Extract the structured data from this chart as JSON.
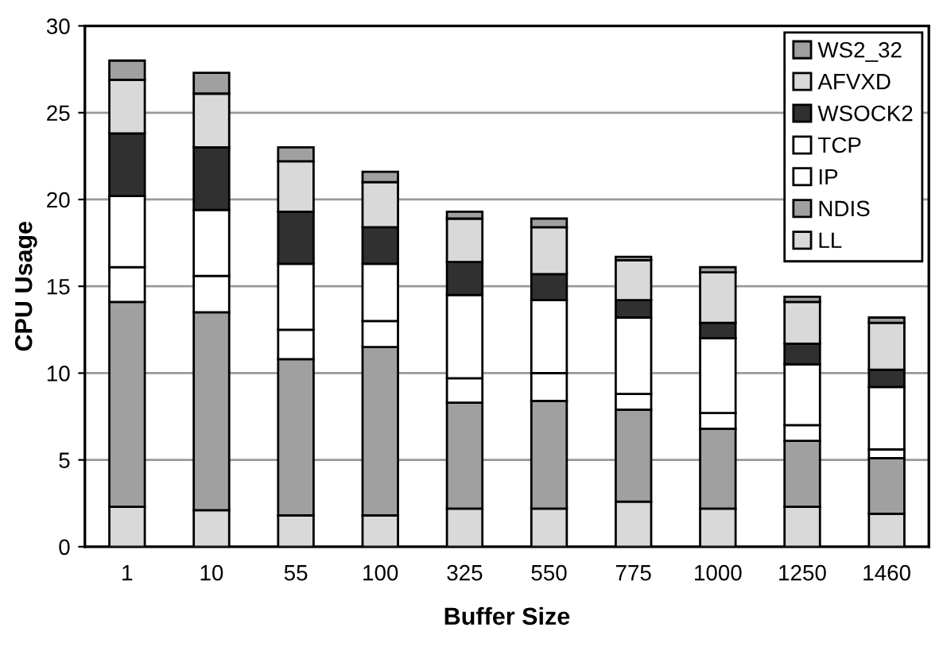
{
  "chart_data": {
    "type": "bar",
    "stacked": true,
    "xlabel": "Buffer Size",
    "ylabel": "CPU Usage",
    "categories": [
      "1",
      "10",
      "55",
      "100",
      "325",
      "550",
      "775",
      "1000",
      "1250",
      "1460"
    ],
    "series": [
      {
        "name": "LL",
        "color": "#d9d9d9",
        "values": [
          2.3,
          2.1,
          1.8,
          1.8,
          2.2,
          2.2,
          2.6,
          2.2,
          2.3,
          1.9
        ]
      },
      {
        "name": "NDIS",
        "color": "#a0a0a0",
        "values": [
          11.8,
          11.4,
          9.0,
          9.7,
          6.1,
          6.2,
          5.3,
          4.6,
          3.8,
          3.2
        ]
      },
      {
        "name": "IP",
        "color": "#ffffff",
        "values": [
          2.0,
          2.1,
          1.7,
          1.5,
          1.4,
          1.6,
          0.9,
          0.9,
          0.9,
          0.5
        ]
      },
      {
        "name": "TCP",
        "color": "#ffffff",
        "values": [
          4.1,
          3.8,
          3.8,
          3.3,
          4.8,
          4.2,
          4.4,
          4.3,
          3.5,
          3.6
        ]
      },
      {
        "name": "WSOCK2",
        "color": "#303030",
        "values": [
          3.6,
          3.6,
          3.0,
          2.1,
          1.9,
          1.5,
          1.0,
          0.9,
          1.2,
          1.0
        ]
      },
      {
        "name": "AFVXD",
        "color": "#d9d9d9",
        "values": [
          3.1,
          3.1,
          2.9,
          2.6,
          2.5,
          2.7,
          2.3,
          2.9,
          2.4,
          2.7
        ]
      },
      {
        "name": "WS2_32",
        "color": "#a0a0a0",
        "values": [
          1.1,
          1.2,
          0.8,
          0.6,
          0.4,
          0.5,
          0.2,
          0.3,
          0.3,
          0.3
        ]
      }
    ],
    "ylim": [
      0,
      30
    ],
    "yticks": [
      0,
      5,
      10,
      15,
      20,
      25,
      30
    ],
    "grid": "y",
    "legend": "top right"
  }
}
